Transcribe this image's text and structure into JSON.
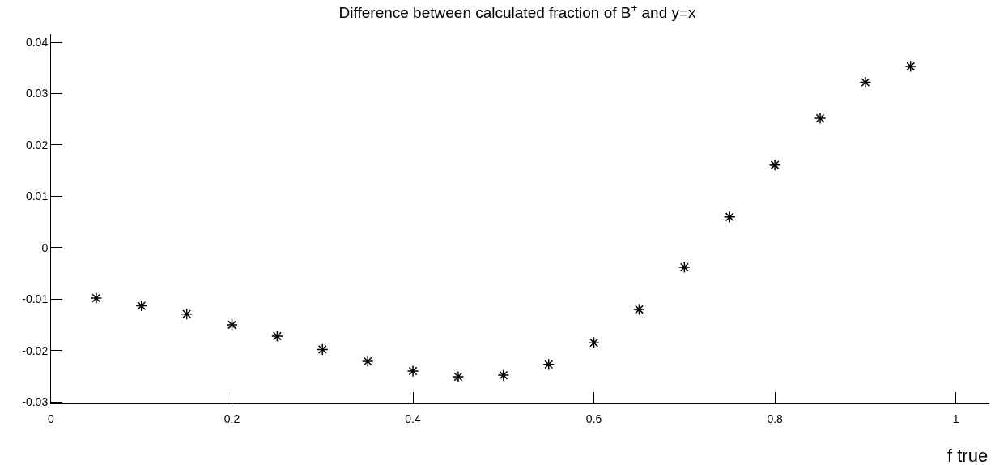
{
  "chart_data": {
    "type": "scatter",
    "title": "Difference between calculated fraction of B$^{+}$ and y=x",
    "xlabel": "f true",
    "x": [
      0.05,
      0.1,
      0.15,
      0.2,
      0.25,
      0.3,
      0.35,
      0.4,
      0.45,
      0.5,
      0.55,
      0.6,
      0.65,
      0.7,
      0.75,
      0.8,
      0.85,
      0.9,
      0.95
    ],
    "values": [
      -0.0098,
      -0.0113,
      -0.0129,
      -0.015,
      -0.0172,
      -0.0198,
      -0.0221,
      -0.024,
      -0.0251,
      -0.0248,
      -0.0227,
      -0.0185,
      -0.012,
      -0.0038,
      0.006,
      0.0161,
      0.0252,
      0.0322,
      0.0353
    ],
    "color": "#000000",
    "marker": "cross",
    "xlim": [
      0,
      1.037
    ],
    "ylim": [
      -0.0303,
      0.0416
    ],
    "xticks": [
      0,
      0.2,
      0.4,
      0.6,
      0.8,
      1
    ],
    "yticks": [
      -0.03,
      -0.02,
      -0.01,
      0,
      0.01,
      0.02,
      0.03,
      0.04
    ],
    "legend": false
  }
}
